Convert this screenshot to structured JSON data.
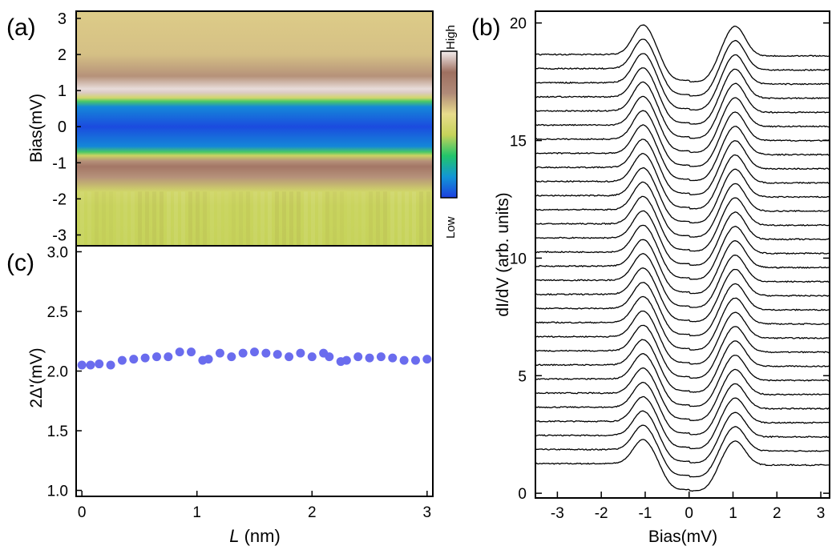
{
  "chart_data": [
    {
      "panel": "(a)",
      "type": "heatmap",
      "ylabel": "Bias(mV)",
      "yticks": [
        3,
        2,
        1,
        0,
        -1,
        -2,
        -3
      ],
      "ylim": [
        -3.3,
        3.2
      ],
      "xlim": [
        -0.1,
        3.05
      ],
      "colorbar": {
        "high_label": "High",
        "low_label": "Low"
      },
      "colormap": [
        "#1c3fe0",
        "#1296d6",
        "#22c56a",
        "#c6d35a",
        "#e8dc8c",
        "#b08a78",
        "#9e7060",
        "#f4eeee"
      ],
      "bias_profile": [
        {
          "bias": 3.2,
          "level": 0.6
        },
        {
          "bias": 2.0,
          "level": 0.62
        },
        {
          "bias": 1.4,
          "level": 0.7
        },
        {
          "bias": 1.05,
          "level": 0.98
        },
        {
          "bias": 0.95,
          "level": 0.96
        },
        {
          "bias": 0.8,
          "level": 0.48
        },
        {
          "bias": 0.7,
          "level": 0.32
        },
        {
          "bias": 0.55,
          "level": 0.12
        },
        {
          "bias": 0.0,
          "level": 0.02
        },
        {
          "bias": -0.55,
          "level": 0.12
        },
        {
          "bias": -0.7,
          "level": 0.32
        },
        {
          "bias": -0.8,
          "level": 0.45
        },
        {
          "bias": -0.95,
          "level": 0.7
        },
        {
          "bias": -1.1,
          "level": 0.82
        },
        {
          "bias": -1.4,
          "level": 0.7
        },
        {
          "bias": -1.8,
          "level": 0.47
        },
        {
          "bias": -2.2,
          "level": 0.44
        },
        {
          "bias": -3.3,
          "level": 0.43
        }
      ]
    },
    {
      "panel": "(b)",
      "type": "line",
      "xlabel": "Bias(mV)",
      "ylabel": "dI/dV (arb. units)",
      "xlim": [
        -3.5,
        3.2
      ],
      "ylim": [
        -0.2,
        20.5
      ],
      "xticks": [
        -3,
        -2,
        -1,
        0,
        1,
        2,
        3
      ],
      "yticks": [
        0,
        5,
        10,
        15,
        20
      ],
      "series_count": 30,
      "offset_per_series": 0.6,
      "gap_edge_bias": [
        -1.05,
        1.05
      ],
      "bottom_curve": {
        "min_value": 0.1,
        "coherence_peak_value": 2.4,
        "background_value": 1.2
      }
    },
    {
      "panel": "(c)",
      "type": "scatter",
      "xlabel": "L (nm)",
      "ylabel": "2Δ'(mV)",
      "xlim": [
        -0.05,
        3.05
      ],
      "ylim": [
        0.95,
        3.05
      ],
      "xticks": [
        0,
        1,
        2,
        3
      ],
      "yticks": [
        1.0,
        1.5,
        2.0,
        2.5,
        3.0
      ],
      "marker_color": "#6a6cee",
      "x": [
        0.0,
        0.075,
        0.15,
        0.25,
        0.35,
        0.45,
        0.55,
        0.65,
        0.75,
        0.85,
        0.95,
        1.05,
        1.1,
        1.2,
        1.3,
        1.4,
        1.5,
        1.6,
        1.7,
        1.8,
        1.9,
        2.0,
        2.1,
        2.15,
        2.25,
        2.3,
        2.4,
        2.5,
        2.6,
        2.7,
        2.8,
        2.9,
        3.0
      ],
      "y": [
        2.05,
        2.05,
        2.06,
        2.05,
        2.09,
        2.1,
        2.11,
        2.12,
        2.12,
        2.16,
        2.16,
        2.09,
        2.1,
        2.15,
        2.12,
        2.15,
        2.16,
        2.15,
        2.14,
        2.12,
        2.15,
        2.12,
        2.15,
        2.12,
        2.08,
        2.09,
        2.12,
        2.11,
        2.12,
        2.11,
        2.09,
        2.09,
        2.1
      ]
    }
  ],
  "labels": {
    "panel_a": "(a)",
    "panel_b": "(b)",
    "panel_c": "(c)",
    "a_ylabel": "Bias(mV)",
    "b_xlabel": "Bias(mV)",
    "b_ylabel": "dI/dV (arb. units)",
    "c_ylabel": "2Δ'(mV)",
    "c_xlabel_italic": "L",
    "c_xlabel_unit": " (nm)",
    "colorbar_high": "High",
    "colorbar_low": "Low"
  },
  "ticks": {
    "a_y": [
      "3",
      "2",
      "1",
      "0",
      "-1",
      "-2",
      "-3"
    ],
    "c_y": [
      "3.0",
      "2.5",
      "2.0",
      "1.5",
      "1.0"
    ],
    "c_x": [
      "0",
      "1",
      "2",
      "3"
    ],
    "b_y": [
      "20",
      "15",
      "10",
      "5",
      "0"
    ],
    "b_x": [
      "-3",
      "-2",
      "-1",
      "0",
      "1",
      "2",
      "3"
    ]
  }
}
